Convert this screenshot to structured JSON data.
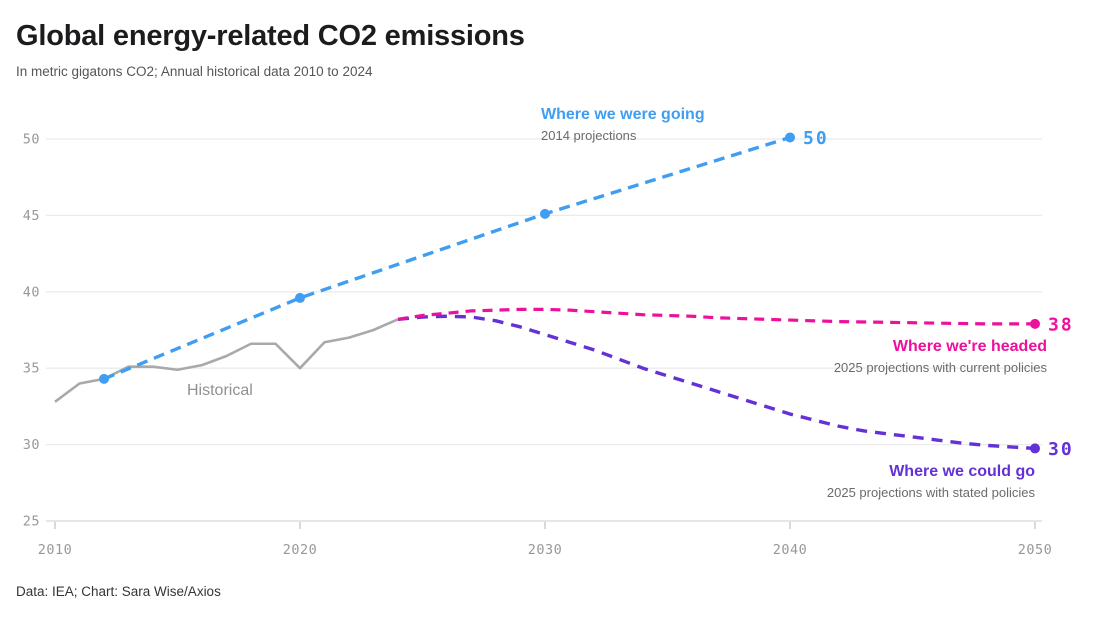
{
  "chart_data": {
    "type": "line",
    "title": "Global energy-related CO2 emissions",
    "subtitle": "In metric gigatons CO2; Annual historical data 2010 to 2024",
    "source": "Data: IEA; Chart: Sara Wise/Axios",
    "xlabel": "",
    "ylabel": "metric gigatons CO2",
    "xlim": [
      2010,
      2050
    ],
    "ylim": [
      25,
      50
    ],
    "xticks": [
      2010,
      2020,
      2030,
      2040,
      2050
    ],
    "yticks": [
      25,
      30,
      35,
      40,
      45,
      50
    ],
    "grid": "horizontal",
    "legend_position": "inline-annotations",
    "series": [
      {
        "name": "Historical",
        "color": "#a9a9aa",
        "style": "solid",
        "width": 2.6,
        "x": [
          2010,
          2011,
          2012,
          2013,
          2014,
          2015,
          2016,
          2017,
          2018,
          2019,
          2020,
          2021,
          2022,
          2023,
          2024
        ],
        "y": [
          32.8,
          34.0,
          34.3,
          35.1,
          35.1,
          34.9,
          35.2,
          35.8,
          36.6,
          36.6,
          35.0,
          36.7,
          37.0,
          37.5,
          38.2
        ]
      },
      {
        "name": "Where we were going",
        "sublabel": "2014 projections",
        "color": "#3f9ef2",
        "style": "dashed",
        "dash": "11 7",
        "width": 3.4,
        "markers": "all",
        "x": [
          2012,
          2020,
          2030,
          2040
        ],
        "y": [
          34.3,
          39.6,
          45.1,
          50.1
        ],
        "end_label": "50"
      },
      {
        "name": "Where we're headed",
        "sublabel": "2025 projections with current policies",
        "color": "#ec109c",
        "style": "dashed",
        "dash": "10 7",
        "width": 3.2,
        "markers": "end",
        "x": [
          2024,
          2025,
          2026,
          2027,
          2028,
          2029,
          2030,
          2031,
          2032,
          2033,
          2034,
          2035,
          2036,
          2037,
          2038,
          2039,
          2040,
          2042,
          2044,
          2046,
          2048,
          2050
        ],
        "y": [
          38.2,
          38.45,
          38.6,
          38.75,
          38.8,
          38.85,
          38.85,
          38.8,
          38.7,
          38.6,
          38.5,
          38.45,
          38.4,
          38.3,
          38.25,
          38.2,
          38.15,
          38.05,
          38.0,
          37.95,
          37.9,
          37.9
        ],
        "end_label": "38"
      },
      {
        "name": "Where we could go",
        "sublabel": "2025 projections with stated policies",
        "color": "#6331d6",
        "style": "dashed",
        "dash": "11 8",
        "width": 3.4,
        "markers": "end",
        "x": [
          2024,
          2025,
          2026,
          2027,
          2028,
          2029,
          2030,
          2031,
          2032,
          2033,
          2034,
          2035,
          2036,
          2037,
          2038,
          2039,
          2040,
          2041,
          2042,
          2043,
          2044,
          2045,
          2046,
          2047,
          2048,
          2049,
          2050
        ],
        "y": [
          38.2,
          38.35,
          38.4,
          38.35,
          38.1,
          37.7,
          37.2,
          36.7,
          36.2,
          35.6,
          35.0,
          34.5,
          34.0,
          33.5,
          33.0,
          32.5,
          32.0,
          31.6,
          31.2,
          30.9,
          30.7,
          30.5,
          30.3,
          30.1,
          29.95,
          29.85,
          29.75
        ],
        "end_label": "30"
      }
    ]
  }
}
